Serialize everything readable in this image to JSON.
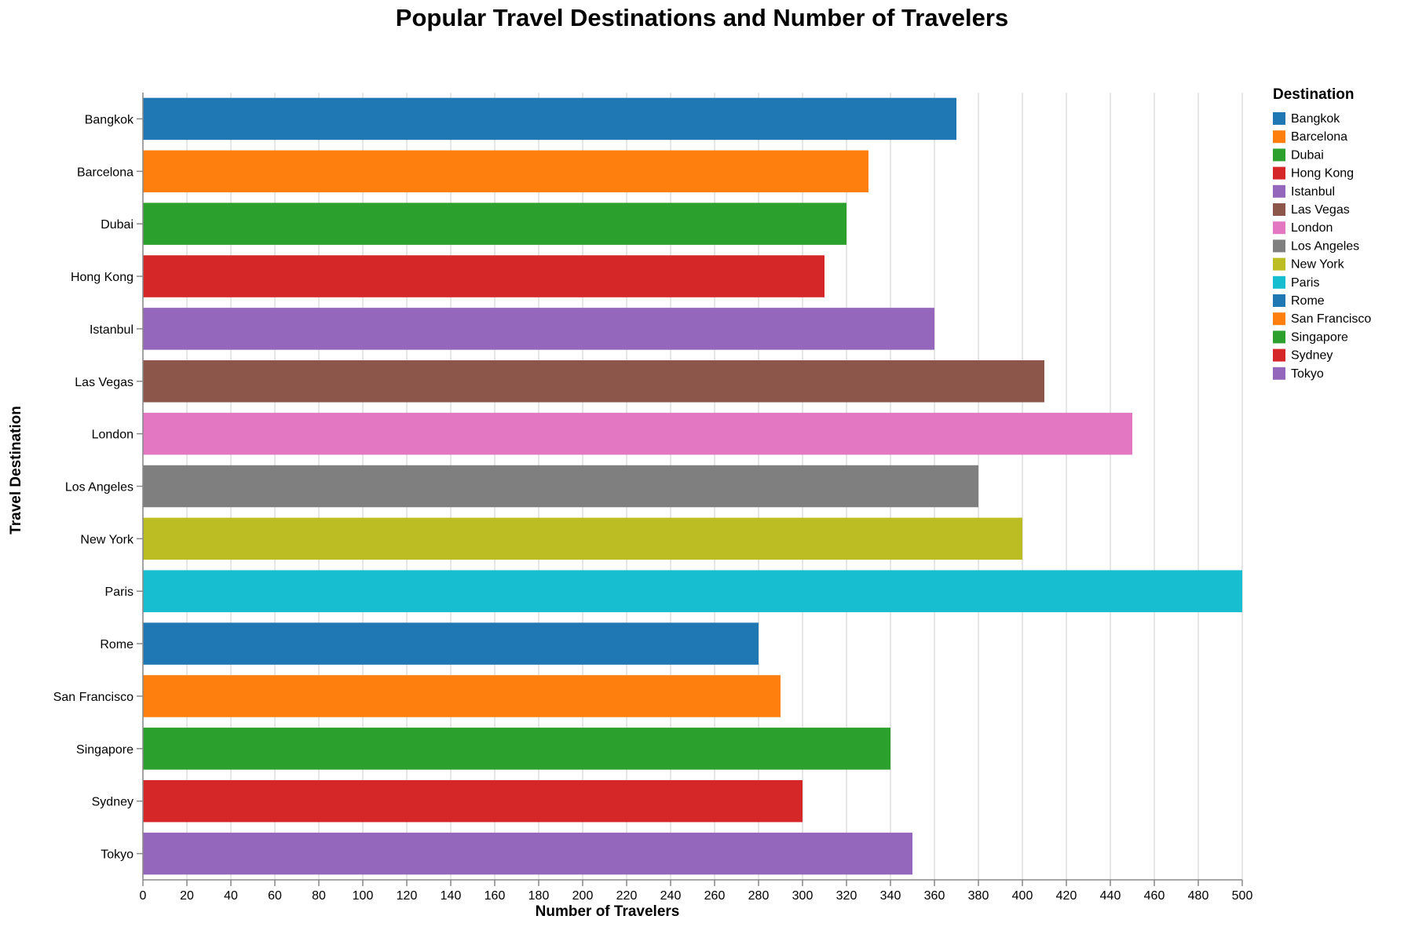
{
  "chart_data": {
    "type": "bar",
    "orientation": "horizontal",
    "title": "Popular Travel Destinations and Number of Travelers",
    "xlabel": "Number of Travelers",
    "ylabel": "Travel Destination",
    "xlim": [
      0,
      500
    ],
    "x_ticks": [
      0,
      20,
      40,
      60,
      80,
      100,
      120,
      140,
      160,
      180,
      200,
      220,
      240,
      260,
      280,
      300,
      320,
      340,
      360,
      380,
      400,
      420,
      440,
      460,
      480,
      500
    ],
    "grid": true,
    "legend": {
      "title": "Destination",
      "placement": "right"
    },
    "categories": [
      "Bangkok",
      "Barcelona",
      "Dubai",
      "Hong Kong",
      "Istanbul",
      "Las Vegas",
      "London",
      "Los Angeles",
      "New York",
      "Paris",
      "Rome",
      "San Francisco",
      "Singapore",
      "Sydney",
      "Tokyo"
    ],
    "values": [
      370,
      330,
      320,
      310,
      360,
      410,
      450,
      380,
      400,
      500,
      280,
      290,
      340,
      300,
      350
    ],
    "colors": [
      "#1f77b4",
      "#ff7f0e",
      "#2ca02c",
      "#d62728",
      "#9467bd",
      "#8c564b",
      "#e377c2",
      "#7f7f7f",
      "#bcbd22",
      "#17becf",
      "#1f77b4",
      "#ff7f0e",
      "#2ca02c",
      "#d62728",
      "#9467bd"
    ]
  }
}
